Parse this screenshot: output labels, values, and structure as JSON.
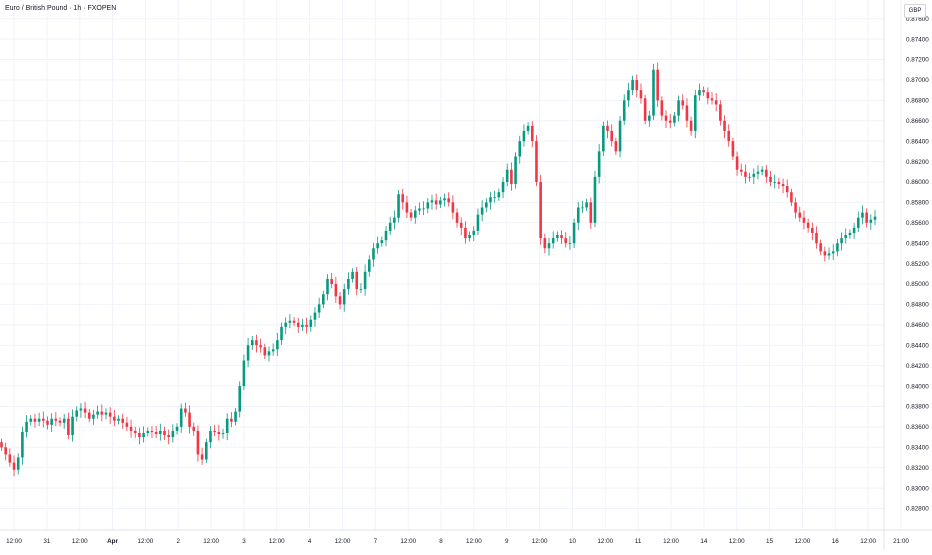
{
  "header": {
    "title": "Euro / British Pound · 1h · FXOPEN",
    "currency": "GBP"
  },
  "colors": {
    "up": "#089981",
    "down": "#f23645",
    "grid": "#f0f3fa",
    "axis_text": "#131722",
    "axis_line": "#e0e3eb"
  },
  "chart_data": {
    "type": "candlestick",
    "symbol": "EURGBP",
    "interval": "1h",
    "ylim": [
      0.828,
      0.877
    ],
    "y_ticks": [
      "0.87600",
      "0.87400",
      "0.87200",
      "0.87000",
      "0.86800",
      "0.86600",
      "0.86400",
      "0.86200",
      "0.86000",
      "0.85800",
      "0.85600",
      "0.85400",
      "0.85200",
      "0.85000",
      "0.84800",
      "0.84600",
      "0.84400",
      "0.84200",
      "0.84000",
      "0.83800",
      "0.83600",
      "0.83400",
      "0.83200",
      "0.83000",
      "0.82800"
    ],
    "x_ticks": [
      "12:00",
      "31",
      "12:00",
      "Apr",
      "12:00",
      "2",
      "12:00",
      "3",
      "12:00",
      "4",
      "12:00",
      "7",
      "12:00",
      "8",
      "12:00",
      "9",
      "12:00",
      "10",
      "12:00",
      "11",
      "12:00",
      "14",
      "12:00",
      "15",
      "12:00",
      "16",
      "12:00",
      "21:00"
    ],
    "x_ticks_bold": [
      "Apr"
    ],
    "closes": [
      0.834,
      0.8333,
      0.8325,
      0.8318,
      0.833,
      0.8355,
      0.8365,
      0.8368,
      0.8365,
      0.8368,
      0.8366,
      0.8362,
      0.8368,
      0.8366,
      0.8364,
      0.8368,
      0.8352,
      0.837,
      0.8376,
      0.8378,
      0.8374,
      0.8368,
      0.8372,
      0.8375,
      0.8372,
      0.8374,
      0.837,
      0.8366,
      0.8368,
      0.8364,
      0.836,
      0.8356,
      0.8354,
      0.835,
      0.8354,
      0.8356,
      0.8355,
      0.8353,
      0.8356,
      0.8352,
      0.835,
      0.8356,
      0.836,
      0.8378,
      0.8374,
      0.836,
      0.8356,
      0.8333,
      0.8328,
      0.8345,
      0.8356,
      0.8355,
      0.8353,
      0.8354,
      0.8368,
      0.8365,
      0.8375,
      0.84,
      0.8425,
      0.844,
      0.8445,
      0.844,
      0.8438,
      0.843,
      0.8434,
      0.8436,
      0.8445,
      0.8458,
      0.8462,
      0.8464,
      0.8462,
      0.8458,
      0.846,
      0.8458,
      0.8465,
      0.8472,
      0.848,
      0.849,
      0.8505,
      0.85,
      0.8488,
      0.848,
      0.8495,
      0.8505,
      0.8512,
      0.8495,
      0.8495,
      0.8512,
      0.8524,
      0.8535,
      0.854,
      0.8543,
      0.8552,
      0.856,
      0.8565,
      0.8588,
      0.858,
      0.857,
      0.8565,
      0.8572,
      0.8574,
      0.8574,
      0.858,
      0.8582,
      0.8578,
      0.8582,
      0.8584,
      0.858,
      0.857,
      0.856,
      0.8555,
      0.8545,
      0.8548,
      0.8552,
      0.8568,
      0.8575,
      0.858,
      0.8585,
      0.8585,
      0.859,
      0.86,
      0.8612,
      0.8598,
      0.8625,
      0.864,
      0.865,
      0.8655,
      0.864,
      0.86,
      0.8545,
      0.8535,
      0.854,
      0.8545,
      0.8548,
      0.8545,
      0.854,
      0.854,
      0.856,
      0.8575,
      0.8575,
      0.858,
      0.856,
      0.8605,
      0.863,
      0.8655,
      0.865,
      0.864,
      0.863,
      0.866,
      0.868,
      0.869,
      0.87,
      0.869,
      0.8682,
      0.866,
      0.8665,
      0.871,
      0.868,
      0.8665,
      0.866,
      0.8658,
      0.8665,
      0.868,
      0.8675,
      0.866,
      0.865,
      0.8685,
      0.869,
      0.8688,
      0.8682,
      0.868,
      0.8676,
      0.866,
      0.865,
      0.864,
      0.8625,
      0.8612,
      0.861,
      0.8605,
      0.8605,
      0.8608,
      0.861,
      0.8612,
      0.8605,
      0.86,
      0.86,
      0.8598,
      0.8596,
      0.859,
      0.858,
      0.857,
      0.8565,
      0.856,
      0.8555,
      0.855,
      0.854,
      0.8532,
      0.8528,
      0.853,
      0.8532,
      0.854,
      0.8545,
      0.8548,
      0.855,
      0.8555,
      0.8565,
      0.857,
      0.856,
      0.8563,
      0.8566
    ]
  }
}
